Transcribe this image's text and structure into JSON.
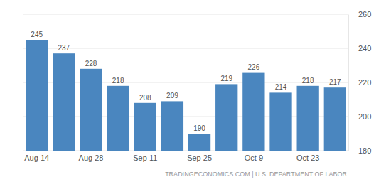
{
  "chart_data": {
    "type": "bar",
    "categories": [
      "Aug 14",
      null,
      "Aug 28",
      null,
      "Sep 11",
      null,
      "Sep 25",
      null,
      "Oct 9",
      null,
      "Oct 23",
      null
    ],
    "values": [
      245,
      237,
      228,
      218,
      208,
      209,
      190,
      219,
      226,
      214,
      218,
      217
    ],
    "color": "#4a86bf",
    "ylim": [
      180,
      260
    ],
    "yticks": [
      180,
      200,
      220,
      240,
      260
    ],
    "grid": true,
    "data_labels": true,
    "source": "TRADINGECONOMICS.COM | U.S. DEPARTMENT OF LABOR"
  }
}
